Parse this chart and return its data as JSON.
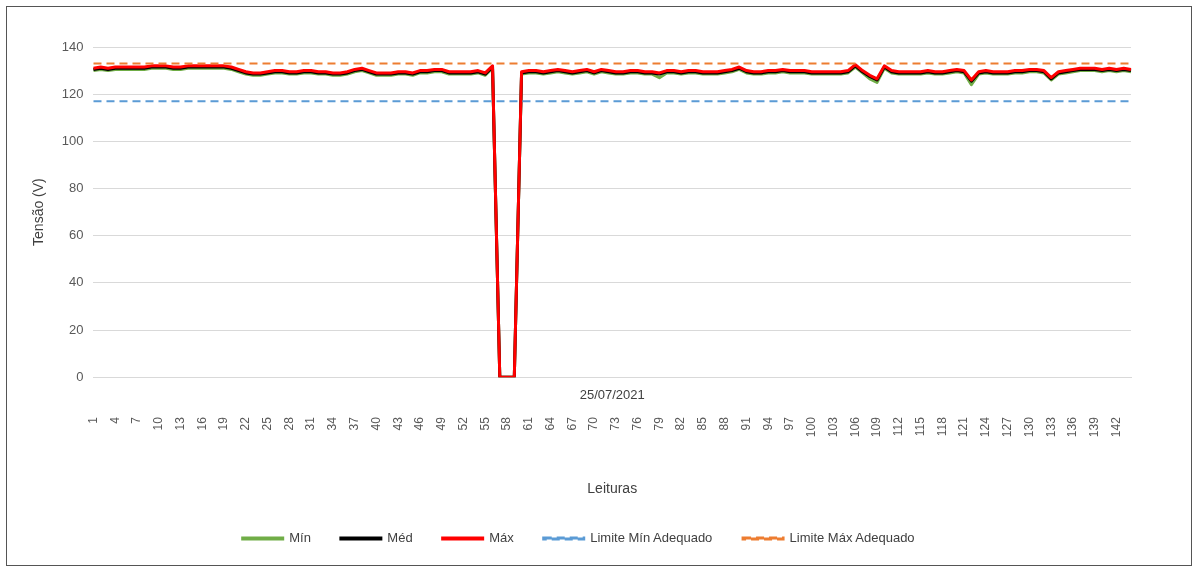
{
  "chart_data": {
    "type": "line",
    "xlabel": "Leituras",
    "ylabel": "Tensão (V)",
    "categories": [
      "1",
      null,
      null,
      "4",
      null,
      null,
      "7",
      null,
      null,
      "10",
      null,
      null,
      "13",
      null,
      null,
      "16",
      null,
      null,
      "19",
      null,
      null,
      "22",
      null,
      null,
      "25",
      null,
      null,
      "28",
      null,
      null,
      "31",
      null,
      null,
      "34",
      null,
      null,
      "37",
      null,
      null,
      "40",
      null,
      null,
      "43",
      null,
      null,
      "46",
      null,
      null,
      "49",
      null,
      null,
      "52",
      null,
      null,
      "55",
      null,
      null,
      "58",
      null,
      null,
      "61",
      null,
      null,
      "64",
      null,
      null,
      "67",
      null,
      null,
      "70",
      null,
      null,
      "73",
      null,
      null,
      "76",
      null,
      null,
      "79",
      null,
      null,
      "82",
      null,
      null,
      "85",
      null,
      null,
      "88",
      null,
      null,
      "91",
      null,
      null,
      "94",
      null,
      null,
      "97",
      null,
      null,
      "100",
      null,
      null,
      "103",
      null,
      null,
      "106",
      null,
      null,
      "109",
      null,
      null,
      "112",
      null,
      null,
      "115",
      null,
      null,
      "118",
      null,
      null,
      "121",
      null,
      null,
      "124",
      null,
      null,
      "127",
      null,
      null,
      "130",
      null,
      null,
      "133",
      null,
      null,
      "136",
      null,
      null,
      "139",
      null,
      null,
      "142",
      null,
      null
    ],
    "series": [
      {
        "name": "Mín",
        "color": "#70ad47",
        "values": [
          130,
          130.5,
          130,
          130.5,
          130.5,
          130.5,
          130.5,
          130.5,
          131,
          131,
          131,
          130.5,
          130.5,
          131,
          131,
          131,
          131,
          131,
          131,
          130.5,
          129.5,
          128.5,
          128,
          128,
          128.5,
          129,
          129,
          128.5,
          128.5,
          129,
          129,
          128.5,
          128.5,
          128,
          128,
          128.5,
          129.5,
          130,
          129,
          128,
          128,
          128,
          128.5,
          128.5,
          128,
          129,
          129,
          129.5,
          129.5,
          128.5,
          128.5,
          128.5,
          128.5,
          129,
          128,
          131,
          0,
          0,
          0,
          128.5,
          129,
          129,
          128.5,
          129,
          129.5,
          129,
          128.5,
          129,
          129.5,
          128.5,
          129.5,
          129,
          128.5,
          128.5,
          129,
          129,
          128.5,
          128.5,
          127,
          129,
          129,
          128.5,
          129,
          129,
          128.5,
          128.5,
          128.5,
          129,
          129.5,
          130.5,
          129,
          128.5,
          128.5,
          129,
          129,
          129.5,
          129,
          129,
          129,
          128.5,
          128.5,
          128.5,
          128.5,
          128.5,
          129,
          131.5,
          129,
          126.5,
          125,
          131,
          129,
          128.5,
          128.5,
          128.5,
          128.5,
          129,
          128.5,
          128.5,
          129,
          129.5,
          129,
          124,
          128.5,
          129,
          128.5,
          128.5,
          128.5,
          129,
          129,
          129.5,
          129.5,
          129,
          126,
          128.5,
          129,
          129.5,
          130,
          130,
          130,
          129.5,
          130,
          129.5,
          130,
          129.5
        ]
      },
      {
        "name": "Méd",
        "color": "#000000",
        "values": [
          130.5,
          131,
          130.5,
          131,
          131,
          131,
          131,
          131,
          131.5,
          131.5,
          131.5,
          131,
          131,
          131.5,
          131.5,
          131.5,
          131.5,
          131.5,
          131.5,
          131,
          130,
          129,
          128.5,
          128.5,
          129,
          129.5,
          129.5,
          129,
          129,
          129.5,
          129.5,
          129,
          129,
          128.5,
          128.5,
          129,
          130,
          130.5,
          129.5,
          128.5,
          128.5,
          128.5,
          129,
          129,
          128.5,
          129.5,
          129.5,
          130,
          130,
          129,
          129,
          129,
          129,
          129.5,
          128.5,
          131.5,
          0,
          0,
          0,
          129,
          129.5,
          129.5,
          129,
          129.5,
          130,
          129.5,
          129,
          129.5,
          130,
          129,
          130,
          129.5,
          129,
          129,
          129.5,
          129.5,
          129,
          129,
          128.5,
          129.5,
          129.5,
          129,
          129.5,
          129.5,
          129,
          129,
          129,
          129.5,
          130,
          131,
          129.5,
          129,
          129,
          129.5,
          129.5,
          130,
          129.5,
          129.5,
          129.5,
          129,
          129,
          129,
          129,
          129,
          129.5,
          132,
          129.5,
          127.5,
          126,
          131.5,
          129.5,
          129,
          129,
          129,
          129,
          129.5,
          129,
          129,
          129.5,
          130,
          129.5,
          125.5,
          129,
          129.5,
          129,
          129,
          129,
          129.5,
          129.5,
          130,
          130,
          129.5,
          126.5,
          129,
          129.5,
          130,
          130.5,
          130.5,
          130.5,
          130,
          130.5,
          130,
          130.5,
          130
        ]
      },
      {
        "name": "Máx",
        "color": "#ff0000",
        "values": [
          131,
          131.5,
          131,
          131.5,
          131.5,
          131.5,
          131.5,
          131.5,
          132,
          132,
          132,
          131.5,
          131.5,
          132,
          132,
          132,
          132,
          132,
          132,
          131.5,
          130.5,
          129.5,
          129,
          129,
          129.5,
          130,
          130,
          129.5,
          129.5,
          130,
          130,
          129.5,
          129.5,
          129,
          129,
          129.5,
          130.5,
          131,
          130,
          129,
          129,
          129,
          129.5,
          129.5,
          129,
          130,
          130,
          130.5,
          130.5,
          129.5,
          129.5,
          129.5,
          129.5,
          130,
          129,
          132,
          0,
          0,
          0,
          129.5,
          130,
          130,
          129.5,
          130,
          130.5,
          130,
          129.5,
          130,
          130.5,
          129.5,
          130.5,
          130,
          129.5,
          129.5,
          130,
          130,
          129.5,
          129.5,
          129,
          130,
          130,
          129.5,
          130,
          130,
          129.5,
          129.5,
          129.5,
          130,
          130.5,
          131.5,
          130,
          129.5,
          129.5,
          130,
          130,
          130.5,
          130,
          130,
          130,
          129.5,
          129.5,
          129.5,
          129.5,
          129.5,
          130,
          132.5,
          130,
          128,
          126.5,
          132,
          130,
          129.5,
          129.5,
          129.5,
          129.5,
          130,
          129.5,
          129.5,
          130,
          130.5,
          130,
          126,
          129.5,
          130,
          129.5,
          129.5,
          129.5,
          130,
          130,
          130.5,
          130.5,
          130,
          127,
          129.5,
          130,
          130.5,
          131,
          131,
          131,
          130.5,
          131,
          130.5,
          131,
          130.5
        ]
      }
    ],
    "ref_lines": [
      {
        "axis": "y",
        "value": 117,
        "label": "Limite Mín Adequado",
        "color": "#5b9bd5",
        "line_style": "dashed"
      },
      {
        "axis": "y",
        "value": 133,
        "label": "Limite Máx Adequado",
        "color": "#ed7d31",
        "line_style": "dashed"
      }
    ],
    "ylim": [
      0,
      140
    ],
    "yticks": [
      0,
      20,
      40,
      60,
      80,
      100,
      120,
      140
    ],
    "annotations": [
      "25/07/2021"
    ],
    "grid": "y",
    "legend": "bottom",
    "line_style": "solid",
    "marker": "none"
  }
}
